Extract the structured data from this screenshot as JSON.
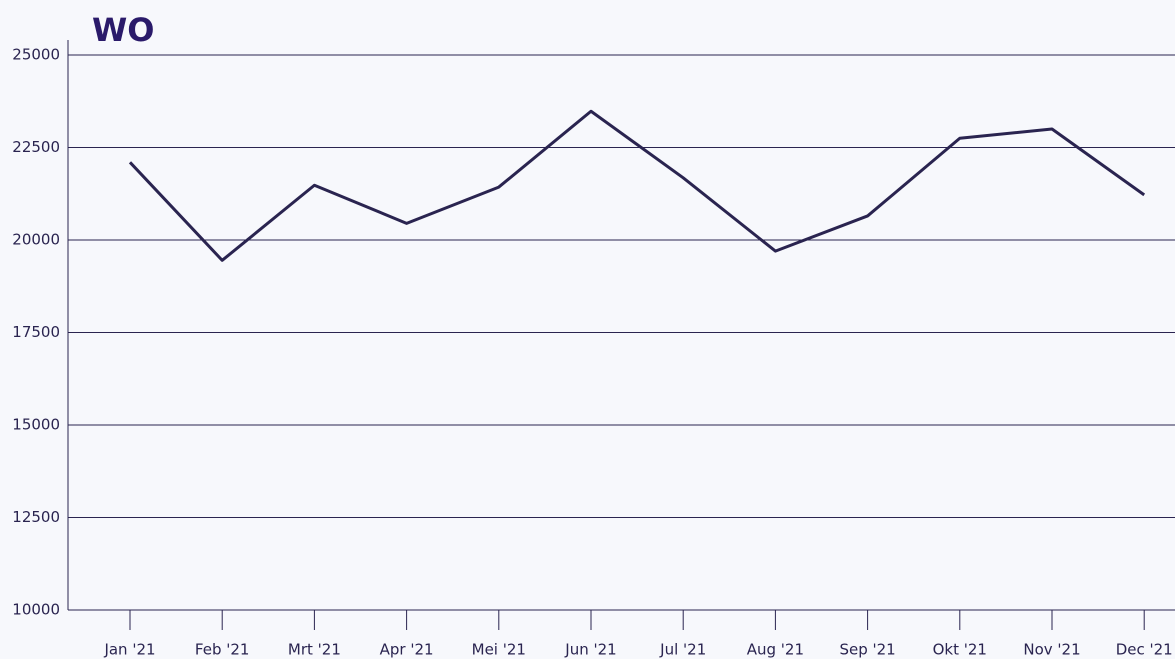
{
  "chart_data": {
    "type": "line",
    "title": "WO",
    "categories": [
      "Jan '21",
      "Feb '21",
      "Mrt '21",
      "Apr '21",
      "Mei '21",
      "Jun '21",
      "Jul '21",
      "Aug '21",
      "Sep '21",
      "Okt '21",
      "Nov '21",
      "Dec '21"
    ],
    "series": [
      {
        "name": "WO",
        "color": "#2a2450",
        "values": [
          22100,
          19450,
          21480,
          20450,
          21430,
          23480,
          21680,
          19700,
          20650,
          22750,
          23000,
          21220
        ]
      }
    ],
    "ylim": [
      10000,
      25000
    ],
    "yticks": [
      10000,
      12500,
      15000,
      17500,
      20000,
      22500,
      25000
    ],
    "grid": true
  }
}
